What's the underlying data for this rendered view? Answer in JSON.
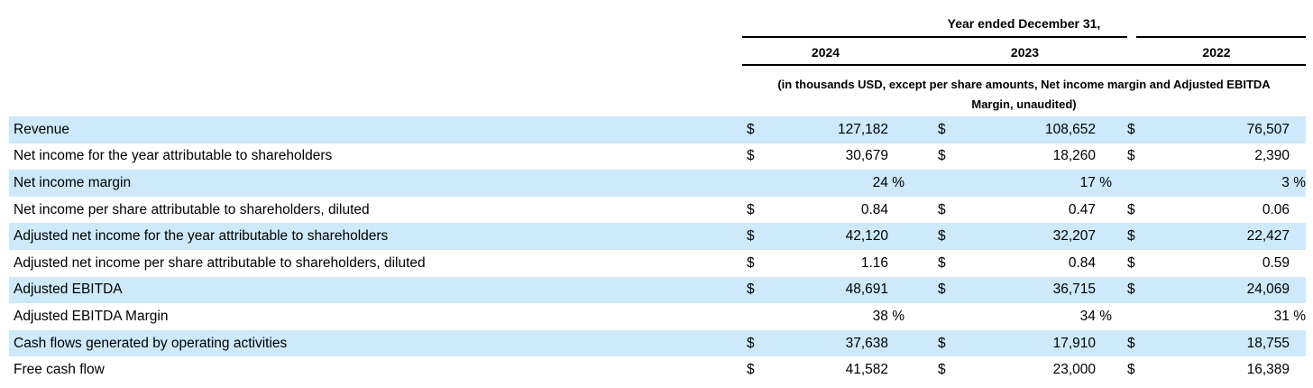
{
  "header": {
    "title": "Year ended December 31,",
    "years": [
      "2024",
      "2023",
      "2022"
    ],
    "note_line1": "(in thousands USD, except per share amounts, Net income margin and Adjusted EBITDA",
    "note_line2": "Margin, unaudited)"
  },
  "symbols": {
    "dollar": "$",
    "percent": "%"
  },
  "colors": {
    "row_highlight": "#cde9fa",
    "rule": "#000000",
    "text": "#000000"
  },
  "rows": [
    {
      "label": "Revenue",
      "unit": "$",
      "values": [
        "127,182",
        "108,652",
        "76,507"
      ],
      "highlight": true
    },
    {
      "label": "Net income for the year attributable to shareholders",
      "unit": "$",
      "values": [
        "30,679",
        "18,260",
        "2,390"
      ],
      "highlight": false
    },
    {
      "label": "Net income margin",
      "unit": "%",
      "values": [
        "24",
        "17",
        "3"
      ],
      "highlight": true
    },
    {
      "label": "Net income per share attributable to shareholders, diluted",
      "unit": "$",
      "values": [
        "0.84",
        "0.47",
        "0.06"
      ],
      "highlight": false
    },
    {
      "label": "Adjusted net income for the year attributable to shareholders",
      "unit": "$",
      "values": [
        "42,120",
        "32,207",
        "22,427"
      ],
      "highlight": true
    },
    {
      "label": "Adjusted net income per share attributable to shareholders, diluted",
      "unit": "$",
      "values": [
        "1.16",
        "0.84",
        "0.59"
      ],
      "highlight": false
    },
    {
      "label": "Adjusted EBITDA",
      "unit": "$",
      "values": [
        "48,691",
        "36,715",
        "24,069"
      ],
      "highlight": true
    },
    {
      "label": "Adjusted EBITDA Margin",
      "unit": "%",
      "values": [
        "38",
        "34",
        "31"
      ],
      "highlight": false
    },
    {
      "label": "Cash flows generated by operating activities",
      "unit": "$",
      "values": [
        "37,638",
        "17,910",
        "18,755"
      ],
      "highlight": true
    },
    {
      "label": "Free cash flow",
      "unit": "$",
      "values": [
        "41,582",
        "23,000",
        "16,389"
      ],
      "highlight": false
    }
  ]
}
